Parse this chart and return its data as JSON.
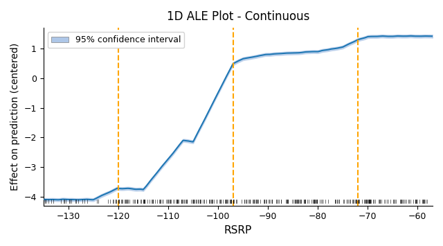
{
  "title": "1D ALE Plot - Continuous",
  "xlabel": "RSRP",
  "ylabel": "Effect on prediction (centered)",
  "xlim": [
    -135,
    -57
  ],
  "ylim": [
    -4.3,
    1.7
  ],
  "vlines": [
    -120,
    -97,
    -72
  ],
  "vline_color": "orange",
  "line_color": "#1f77b4",
  "ci_color": "#aec7e8",
  "legend_label": "95% confidence interval",
  "rug_y": -4.15,
  "rug_height": 0.12,
  "rug_color": "black",
  "xticks": [
    -130,
    -120,
    -110,
    -100,
    -90,
    -80,
    -70,
    -60
  ]
}
